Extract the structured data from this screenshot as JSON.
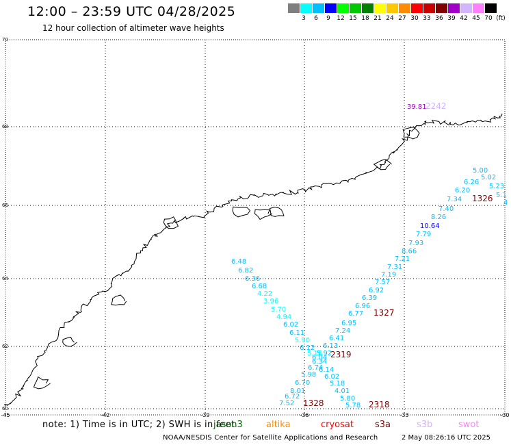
{
  "header": {
    "title": "12:00 – 23:59 UTC 04/28/2025",
    "subtitle": "12 hour collection of altimeter wave heights"
  },
  "legend": {
    "swatches": [
      {
        "color": "#7f7f7f",
        "label": "3"
      },
      {
        "color": "#00ffff",
        "label": "6"
      },
      {
        "color": "#00bfff",
        "label": "9"
      },
      {
        "color": "#0000ff",
        "label": "12"
      },
      {
        "color": "#00ff00",
        "label": "15"
      },
      {
        "color": "#00c800",
        "label": "18"
      },
      {
        "color": "#008000",
        "label": "21"
      },
      {
        "color": "#ffff00",
        "label": "24"
      },
      {
        "color": "#ffc800",
        "label": "27"
      },
      {
        "color": "#ff8c00",
        "label": "30"
      },
      {
        "color": "#ff0000",
        "label": "33"
      },
      {
        "color": "#c80000",
        "label": "36"
      },
      {
        "color": "#800000",
        "label": "39"
      },
      {
        "color": "#a000c8",
        "label": "42"
      },
      {
        "color": "#d2b4ff",
        "label": "45"
      },
      {
        "color": "#ff80ff",
        "label": "70"
      },
      {
        "color": "#000000",
        "label": "(ft)"
      }
    ]
  },
  "axes": {
    "x_ticks": [
      "-45",
      "-42",
      "-39",
      "-36",
      "-33",
      "-30"
    ],
    "y_ticks": [
      "70",
      "68",
      "66",
      "64",
      "62",
      "60"
    ]
  },
  "tracks": [
    {
      "id": "1326",
      "label": "1326",
      "color": "#800000",
      "points": [
        {
          "v": "5.00",
          "c": "#00bfff"
        },
        {
          "v": "5.02",
          "c": "#00bfff"
        },
        {
          "v": "5.23",
          "c": "#00bfff"
        },
        {
          "v": "6.26",
          "c": "#00bfff"
        },
        {
          "v": "5.1",
          "c": "#00bfff"
        },
        {
          "v": "6.20",
          "c": "#00bfff"
        },
        {
          "v": "4",
          "c": "#00bfff"
        },
        {
          "v": "7.34",
          "c": "#00bfff"
        },
        {
          "v": "7.40",
          "c": "#00bfff"
        },
        {
          "v": "8.26",
          "c": "#00bfff"
        },
        {
          "v": "10.64",
          "c": "#0000ff"
        },
        {
          "v": "7.79",
          "c": "#00bfff"
        },
        {
          "v": "7.93",
          "c": "#00bfff"
        },
        {
          "v": "8.66",
          "c": "#00bfff"
        },
        {
          "v": "7.21",
          "c": "#00bfff"
        },
        {
          "v": "7.31",
          "c": "#00bfff"
        },
        {
          "v": "7.19",
          "c": "#00bfff"
        },
        {
          "v": "7.57",
          "c": "#00bfff"
        },
        {
          "v": "6.92",
          "c": "#00bfff"
        },
        {
          "v": "6.39",
          "c": "#00bfff"
        },
        {
          "v": "6.96",
          "c": "#00bfff"
        },
        {
          "v": "6.77",
          "c": "#00bfff"
        }
      ]
    },
    {
      "id": "1327",
      "label": "1327",
      "color": "#800000",
      "points": [
        {
          "v": "6.95",
          "c": "#00bfff"
        },
        {
          "v": "7.24",
          "c": "#00bfff"
        },
        {
          "v": "6.41",
          "c": "#00bfff"
        },
        {
          "v": "6.13",
          "c": "#00bfff"
        },
        {
          "v": "5.92",
          "c": "#00bfff"
        }
      ]
    },
    {
      "id": "2319",
      "label": "2319",
      "color": "#800000",
      "points": [
        {
          "v": "6.48",
          "c": "#00bfff"
        },
        {
          "v": "6.82",
          "c": "#00bfff"
        },
        {
          "v": "6.36",
          "c": "#00bfff"
        },
        {
          "v": "6.68",
          "c": "#00bfff"
        },
        {
          "v": "4.22",
          "c": "#00ffff"
        },
        {
          "v": "3.96",
          "c": "#00ffff"
        },
        {
          "v": "5.70",
          "c": "#00ffff"
        },
        {
          "v": "4.94",
          "c": "#00ffff"
        },
        {
          "v": "6.02",
          "c": "#00bfff"
        },
        {
          "v": "6.11",
          "c": "#00bfff"
        },
        {
          "v": "5.90",
          "c": "#00ffff"
        },
        {
          "v": "6.12",
          "c": "#00bfff"
        },
        {
          "v": "5.16",
          "c": "#00ffff"
        },
        {
          "v": "6.04",
          "c": "#00bfff"
        },
        {
          "v": "6.34",
          "c": "#00bfff"
        },
        {
          "v": "6.74",
          "c": "#00bfff"
        }
      ]
    },
    {
      "id": "2318",
      "label": "2318",
      "color": "#800000",
      "points": [
        {
          "v": "6.14",
          "c": "#00bfff"
        },
        {
          "v": "6.02",
          "c": "#00bfff"
        },
        {
          "v": "5.18",
          "c": "#00bfff"
        },
        {
          "v": "4.01",
          "c": "#00bfff"
        },
        {
          "v": "5.80",
          "c": "#00bfff"
        },
        {
          "v": "5.78",
          "c": "#00bfff"
        }
      ]
    },
    {
      "id": "1328",
      "label": "1328",
      "color": "#800000",
      "points": [
        {
          "v": "5.98",
          "c": "#00bfff"
        },
        {
          "v": "6.70",
          "c": "#00bfff"
        },
        {
          "v": "8.01",
          "c": "#00bfff"
        },
        {
          "v": "6.72",
          "c": "#00bfff"
        },
        {
          "v": "7.52",
          "c": "#00bfff"
        }
      ]
    },
    {
      "id": "2242",
      "label": "2242",
      "color": "#d2b4ff",
      "points": [
        {
          "v": "39.81",
          "c": "#a000c8"
        }
      ]
    }
  ],
  "footer": {
    "note": "note:  1) Time is in UTC; 2) SWH is in feet",
    "satellites": [
      {
        "name": "jason3",
        "color": "#006400"
      },
      {
        "name": "altika",
        "color": "#ff8c00"
      },
      {
        "name": "cryosat",
        "color": "#ff0000"
      },
      {
        "name": "s3a",
        "color": "#800000"
      },
      {
        "name": "s3b",
        "color": "#d2b4ff"
      },
      {
        "name": "swot",
        "color": "#ff80ff"
      }
    ],
    "credit": "NOAA/NESDIS Center for Satellite Applications and Research",
    "timestamp": "2 May 08:26:16 UTC 2025"
  }
}
